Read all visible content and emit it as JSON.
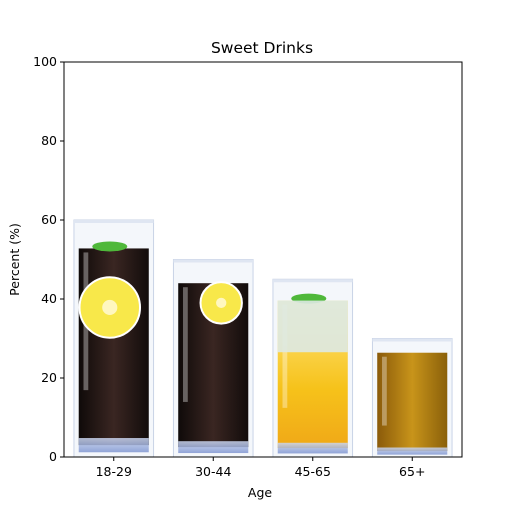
{
  "chart_data": {
    "type": "bar",
    "title": "Sweet Drinks",
    "xlabel": "Age",
    "ylabel": "Percent (%)",
    "categories": [
      "18-29",
      "30-44",
      "45-65",
      "65+"
    ],
    "values": [
      60,
      50,
      45,
      30
    ],
    "ylim": [
      0,
      100
    ],
    "yticks": [
      "0",
      "20",
      "40",
      "60",
      "80",
      "100"
    ],
    "bar_images": [
      "cola glass with lemon slice and mint",
      "cola glass with lemon slice",
      "lemonade glass with mint",
      "amber drink glass"
    ],
    "grid": false,
    "legend": "none"
  },
  "colors": {
    "cola": "#231a17",
    "lemon": "#f6c21a",
    "mint": "#4fb83a",
    "amber": "#b8860b",
    "glass": "#9fb3e0"
  }
}
